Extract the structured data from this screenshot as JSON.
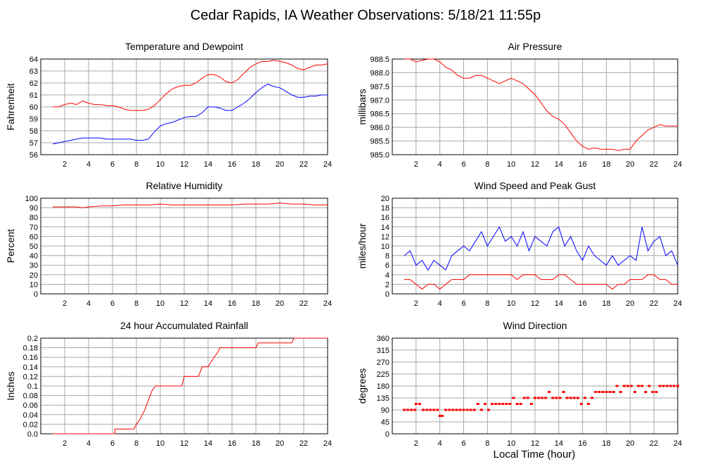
{
  "page": {
    "title": "Cedar Rapids, IA Weather Observations: 5/18/21 11:55p",
    "x_axis_label": "Local Time (hour)"
  },
  "chart_data": [
    {
      "id": "temp",
      "type": "line",
      "title": "Temperature and Dewpoint",
      "ylabel": "Fahrenheit",
      "xlim": [
        0,
        24
      ],
      "ylim": [
        56,
        64
      ],
      "x_ticks": [
        2,
        4,
        6,
        8,
        10,
        12,
        14,
        16,
        18,
        20,
        22,
        24
      ],
      "y_ticks": [
        56,
        57,
        58,
        59,
        60,
        61,
        62,
        63,
        64
      ],
      "y_tick_labels": [
        "56",
        "57",
        "58",
        "59",
        "60",
        "61",
        "62",
        "63",
        "64"
      ],
      "grid": true,
      "series": [
        {
          "color": "#ff0000",
          "x": [
            1,
            1.5,
            2,
            2.5,
            3,
            3.5,
            4,
            4.5,
            5,
            5.5,
            6,
            6.5,
            7,
            7.5,
            8,
            8.5,
            9,
            9.5,
            10,
            10.5,
            11,
            11.5,
            12,
            12.5,
            13,
            13.5,
            14,
            14.5,
            15,
            15.5,
            16,
            16.5,
            17,
            17.5,
            18,
            18.5,
            19,
            19.5,
            20,
            20.5,
            21,
            21.5,
            22,
            22.5,
            23,
            23.5,
            24
          ],
          "values": [
            60,
            60,
            60.2,
            60.3,
            60.2,
            60.5,
            60.3,
            60.2,
            60.2,
            60.1,
            60.1,
            60,
            59.8,
            59.7,
            59.7,
            59.7,
            59.8,
            60.1,
            60.6,
            61.1,
            61.5,
            61.7,
            61.8,
            61.8,
            62,
            62.4,
            62.7,
            62.7,
            62.5,
            62.1,
            62,
            62.3,
            62.8,
            63.3,
            63.6,
            63.8,
            63.8,
            63.9,
            63.8,
            63.7,
            63.5,
            63.2,
            63.1,
            63.3,
            63.5,
            63.5,
            63.6
          ]
        },
        {
          "color": "#0000ff",
          "x": [
            1,
            1.5,
            2,
            2.5,
            3,
            3.5,
            4,
            4.5,
            5,
            5.5,
            6,
            6.5,
            7,
            7.5,
            8,
            8.5,
            9,
            9.5,
            10,
            10.5,
            11,
            11.5,
            12,
            12.5,
            13,
            13.5,
            14,
            14.5,
            15,
            15.5,
            16,
            16.5,
            17,
            17.5,
            18,
            18.5,
            19,
            19.5,
            20,
            20.5,
            21,
            21.5,
            22,
            22.5,
            23,
            23.5,
            24
          ],
          "values": [
            56.9,
            57,
            57.1,
            57.2,
            57.3,
            57.4,
            57.4,
            57.4,
            57.4,
            57.3,
            57.3,
            57.3,
            57.3,
            57.3,
            57.2,
            57.2,
            57.3,
            57.9,
            58.4,
            58.6,
            58.7,
            58.9,
            59.1,
            59.2,
            59.2,
            59.5,
            60,
            60,
            59.9,
            59.7,
            59.7,
            60,
            60.3,
            60.7,
            61.2,
            61.6,
            61.9,
            61.7,
            61.6,
            61.3,
            61,
            60.8,
            60.8,
            60.9,
            60.9,
            61,
            61
          ]
        }
      ]
    },
    {
      "id": "pressure",
      "type": "line",
      "title": "Air Pressure",
      "ylabel": "millibars",
      "xlim": [
        0,
        24
      ],
      "ylim": [
        985.0,
        988.5
      ],
      "x_ticks": [
        2,
        4,
        6,
        8,
        10,
        12,
        14,
        16,
        18,
        20,
        22,
        24
      ],
      "y_ticks": [
        985.0,
        985.5,
        986.0,
        986.5,
        987.0,
        987.5,
        988.0,
        988.5
      ],
      "y_tick_labels": [
        "985.0",
        "985.5",
        "986.0",
        "986.5",
        "987.0",
        "987.5",
        "988.0",
        "988.5"
      ],
      "grid": true,
      "series": [
        {
          "color": "#ff0000",
          "x": [
            1,
            1.5,
            2,
            2.5,
            3,
            3.5,
            4,
            4.5,
            5,
            5.5,
            6,
            6.5,
            7,
            7.5,
            8,
            8.5,
            9,
            9.5,
            10,
            10.5,
            11,
            11.5,
            12,
            12.5,
            13,
            13.5,
            14,
            14.5,
            15,
            15.5,
            16,
            16.5,
            17,
            17.5,
            18,
            18.5,
            19,
            19.5,
            20,
            20.5,
            21,
            21.5,
            22,
            22.5,
            23,
            23.5,
            24
          ],
          "values": [
            988.5,
            988.5,
            988.4,
            988.45,
            988.5,
            988.5,
            988.4,
            988.2,
            988.1,
            987.9,
            987.8,
            987.8,
            987.9,
            987.9,
            987.8,
            987.7,
            987.6,
            987.7,
            987.8,
            987.7,
            987.6,
            987.4,
            987.2,
            986.9,
            986.6,
            986.4,
            986.3,
            986.1,
            985.8,
            985.5,
            985.3,
            985.2,
            985.25,
            985.2,
            985.2,
            985.2,
            985.15,
            985.2,
            985.2,
            985.5,
            985.7,
            985.9,
            986,
            986.1,
            986.05,
            986.05,
            986.05
          ]
        }
      ]
    },
    {
      "id": "humidity",
      "type": "line",
      "title": "Relative Humidity",
      "ylabel": "Percent",
      "xlim": [
        0,
        24
      ],
      "ylim": [
        0,
        100
      ],
      "x_ticks": [
        2,
        4,
        6,
        8,
        10,
        12,
        14,
        16,
        18,
        20,
        22,
        24
      ],
      "y_ticks": [
        0,
        10,
        20,
        30,
        40,
        50,
        60,
        70,
        80,
        90,
        100
      ],
      "y_tick_labels": [
        "0",
        "10",
        "20",
        "30",
        "40",
        "50",
        "60",
        "70",
        "80",
        "90",
        "100"
      ],
      "grid": true,
      "series": [
        {
          "color": "#ff0000",
          "x": [
            1,
            2,
            3,
            3.5,
            4,
            5,
            6,
            7,
            8,
            9,
            10,
            11,
            12,
            13,
            14,
            15,
            16,
            17,
            18,
            19,
            20,
            21,
            22,
            23,
            24
          ],
          "values": [
            91,
            91,
            91,
            90,
            91,
            92,
            92,
            93,
            93,
            93,
            94,
            93,
            93,
            93,
            93,
            93,
            93,
            94,
            94,
            94,
            95,
            94,
            94,
            93,
            93
          ]
        }
      ]
    },
    {
      "id": "wind",
      "type": "line",
      "title": "Wind Speed and Peak Gust",
      "ylabel": "miles/hour",
      "xlim": [
        0,
        24
      ],
      "ylim": [
        0,
        20
      ],
      "x_ticks": [
        2,
        4,
        6,
        8,
        10,
        12,
        14,
        16,
        18,
        20,
        22,
        24
      ],
      "y_ticks": [
        0,
        2,
        4,
        6,
        8,
        10,
        12,
        14,
        16,
        18,
        20
      ],
      "y_tick_labels": [
        "0",
        "2",
        "4",
        "6",
        "8",
        "10",
        "12",
        "14",
        "16",
        "18",
        "20"
      ],
      "grid": true,
      "series": [
        {
          "color": "#0000ff",
          "x": [
            1,
            1.5,
            2,
            2.5,
            3,
            3.5,
            4,
            4.5,
            5,
            5.5,
            6,
            6.5,
            7,
            7.5,
            8,
            8.5,
            9,
            9.5,
            10,
            10.5,
            11,
            11.5,
            12,
            12.5,
            13,
            13.5,
            14,
            14.5,
            15,
            15.5,
            16,
            16.5,
            17,
            17.5,
            18,
            18.5,
            19,
            19.5,
            20,
            20.5,
            21,
            21.5,
            22,
            22.5,
            23,
            23.5,
            24
          ],
          "values": [
            8,
            9,
            6,
            7,
            5,
            7,
            6,
            5,
            8,
            9,
            10,
            9,
            11,
            13,
            10,
            12,
            14,
            11,
            12,
            10,
            13,
            9,
            12,
            11,
            10,
            13,
            14,
            10,
            12,
            9,
            7,
            10,
            8,
            7,
            6,
            8,
            6,
            7,
            8,
            7,
            14,
            9,
            11,
            12,
            8,
            9,
            6
          ]
        },
        {
          "color": "#ff0000",
          "x": [
            1,
            1.5,
            2,
            2.5,
            3,
            3.5,
            4,
            4.5,
            5,
            5.5,
            6,
            6.5,
            7,
            7.5,
            8,
            8.5,
            9,
            9.5,
            10,
            10.5,
            11,
            11.5,
            12,
            12.5,
            13,
            13.5,
            14,
            14.5,
            15,
            15.5,
            16,
            16.5,
            17,
            17.5,
            18,
            18.5,
            19,
            19.5,
            20,
            20.5,
            21,
            21.5,
            22,
            22.5,
            23,
            23.5,
            24
          ],
          "values": [
            3,
            3,
            2,
            1,
            2,
            2,
            1,
            2,
            3,
            3,
            3,
            4,
            4,
            4,
            4,
            4,
            4,
            4,
            4,
            3,
            4,
            4,
            4,
            3,
            3,
            3,
            4,
            4,
            3,
            2,
            2,
            2,
            2,
            2,
            2,
            1,
            2,
            2,
            3,
            3,
            3,
            4,
            4,
            3,
            3,
            2,
            2
          ]
        }
      ]
    },
    {
      "id": "rain",
      "type": "line",
      "title": "24 hour Accumulated Rainfall",
      "ylabel": "Inches",
      "xlim": [
        0,
        24
      ],
      "ylim": [
        0,
        0.2
      ],
      "x_ticks": [
        2,
        4,
        6,
        8,
        10,
        12,
        14,
        16,
        18,
        20,
        22,
        24
      ],
      "y_ticks": [
        0,
        0.02,
        0.04,
        0.06,
        0.08,
        0.1,
        0.12,
        0.14,
        0.16,
        0.18,
        0.2
      ],
      "y_tick_labels": [
        "0.0",
        "0.02",
        "0.04",
        "0.06",
        "0.08",
        "0.1",
        "0.12",
        "0.14",
        "0.16",
        "0.18",
        "0.2"
      ],
      "grid": true,
      "series": [
        {
          "color": "#ff0000",
          "x": [
            1,
            6.2,
            6.2,
            7.8,
            8,
            8.3,
            8.5,
            8.7,
            9,
            9.3,
            9.6,
            11.8,
            12,
            13.2,
            13.5,
            14,
            14.5,
            14.8,
            15,
            16.5,
            18,
            18.2,
            21,
            21.2,
            24
          ],
          "values": [
            0,
            0,
            0.01,
            0.01,
            0.02,
            0.03,
            0.04,
            0.05,
            0.07,
            0.09,
            0.1,
            0.1,
            0.12,
            0.12,
            0.14,
            0.14,
            0.16,
            0.17,
            0.18,
            0.18,
            0.18,
            0.19,
            0.19,
            0.2,
            0.2
          ]
        }
      ]
    },
    {
      "id": "direction",
      "type": "scatter",
      "title": "Wind Direction",
      "ylabel": "degrees",
      "xlabel": "Local Time (hour)",
      "xlim": [
        0,
        24
      ],
      "ylim": [
        0,
        360
      ],
      "x_ticks": [
        2,
        4,
        6,
        8,
        10,
        12,
        14,
        16,
        18,
        20,
        22,
        24
      ],
      "y_ticks": [
        0,
        45,
        90,
        135,
        180,
        225,
        270,
        315,
        360
      ],
      "y_tick_labels": [
        "0",
        "45",
        "90",
        "135",
        "180",
        "225",
        "270",
        "315",
        "360"
      ],
      "grid": true,
      "series": [
        {
          "color": "#ff0000",
          "x": [
            1,
            1.3,
            1.6,
            1.9,
            2,
            2.3,
            2.6,
            2.9,
            3.2,
            3.5,
            3.8,
            4,
            4.2,
            4.5,
            4.8,
            5.1,
            5.4,
            5.7,
            6,
            6.3,
            6.6,
            6.9,
            7.2,
            7.5,
            7.8,
            8.1,
            8.4,
            8.7,
            9,
            9.3,
            9.6,
            9.9,
            10.2,
            10.5,
            10.8,
            11.1,
            11.4,
            11.7,
            12,
            12.3,
            12.6,
            12.9,
            13.2,
            13.5,
            13.8,
            14.1,
            14.4,
            14.7,
            15,
            15.3,
            15.6,
            15.9,
            16.2,
            16.5,
            16.8,
            17.1,
            17.4,
            17.7,
            18,
            18.3,
            18.6,
            18.9,
            19.2,
            19.5,
            19.8,
            20.1,
            20.4,
            20.7,
            21,
            21.3,
            21.6,
            21.9,
            22.2,
            22.5,
            22.8,
            23.1,
            23.4,
            23.7,
            24
          ],
          "values": [
            90,
            90,
            90,
            90,
            112.5,
            112.5,
            90,
            90,
            90,
            90,
            90,
            67.5,
            67.5,
            90,
            90,
            90,
            90,
            90,
            90,
            90,
            90,
            90,
            112.5,
            90,
            112.5,
            90,
            112.5,
            112.5,
            112.5,
            112.5,
            112.5,
            112.5,
            135,
            112.5,
            112.5,
            135,
            135,
            112.5,
            135,
            135,
            135,
            135,
            157.5,
            135,
            135,
            135,
            157.5,
            135,
            135,
            135,
            135,
            112.5,
            135,
            112.5,
            135,
            157.5,
            157.5,
            157.5,
            157.5,
            157.5,
            157.5,
            180,
            157.5,
            180,
            180,
            180,
            157.5,
            180,
            180,
            157.5,
            180,
            157.5,
            157.5,
            180,
            180,
            180,
            180,
            180,
            180
          ]
        }
      ]
    }
  ]
}
